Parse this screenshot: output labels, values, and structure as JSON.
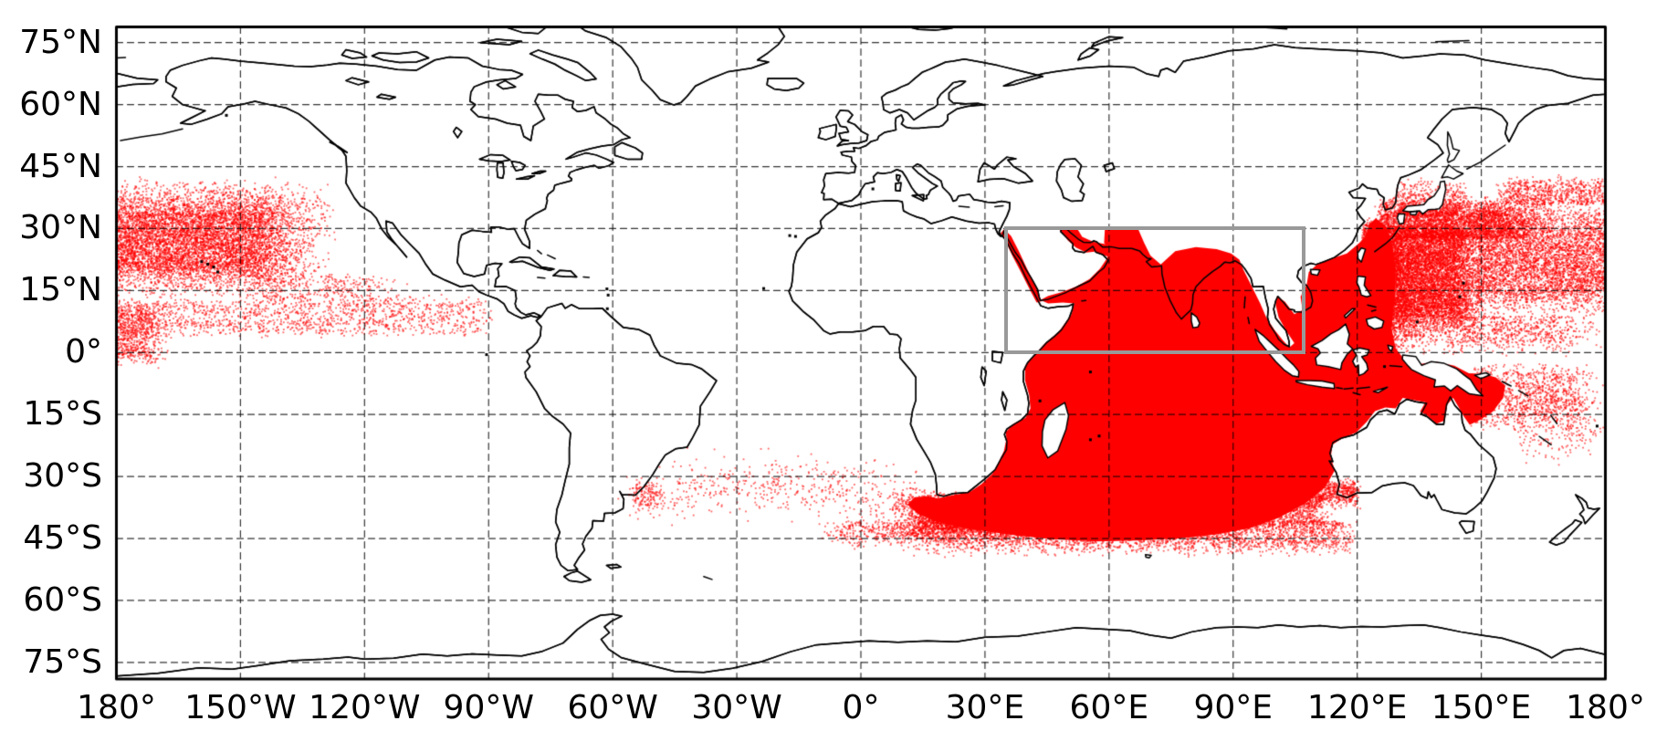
{
  "chart_data": {
    "type": "scatter",
    "title": "",
    "projection": "equirectangular",
    "axis_ranges": {
      "lon": [
        -180,
        180
      ],
      "lat": [
        -79.0,
        78.8
      ]
    },
    "x_axis": {
      "ticks": [
        {
          "lon": -180,
          "label": "180°"
        },
        {
          "lon": -150,
          "label": "150°W"
        },
        {
          "lon": -120,
          "label": "120°W"
        },
        {
          "lon": -90,
          "label": "90°W"
        },
        {
          "lon": -60,
          "label": "60°W"
        },
        {
          "lon": -30,
          "label": "30°W"
        },
        {
          "lon": 0,
          "label": "0°"
        },
        {
          "lon": 30,
          "label": "30°E"
        },
        {
          "lon": 60,
          "label": "60°E"
        },
        {
          "lon": 90,
          "label": "90°E"
        },
        {
          "lon": 120,
          "label": "120°E"
        },
        {
          "lon": 150,
          "label": "150°E"
        },
        {
          "lon": 180,
          "label": "180°"
        }
      ]
    },
    "y_axis": {
      "ticks": [
        {
          "lat": 75,
          "label": "75°N"
        },
        {
          "lat": 60,
          "label": "60°N"
        },
        {
          "lat": 45,
          "label": "45°N"
        },
        {
          "lat": 30,
          "label": "30°N"
        },
        {
          "lat": 15,
          "label": "15°N"
        },
        {
          "lat": 0,
          "label": "0°"
        },
        {
          "lat": -15,
          "label": "15°S"
        },
        {
          "lat": -30,
          "label": "30°S"
        },
        {
          "lat": -45,
          "label": "45°S"
        },
        {
          "lat": -60,
          "label": "60°S"
        },
        {
          "lat": -75,
          "label": "75°S"
        }
      ]
    },
    "grid": {
      "on": true,
      "lon_step": 30,
      "lat_step": 15,
      "color": "rgba(0,0,0,0.8)",
      "dash": [
        7,
        5
      ],
      "linewidth": 1.2
    },
    "frame": {
      "color": "#000000",
      "linewidth": 3
    },
    "coastline": {
      "color": "#000000",
      "linewidth": 1.5
    },
    "study_region_box": {
      "lon": [
        35,
        107
      ],
      "lat": [
        0,
        30
      ],
      "color": "#999999",
      "linewidth": 4
    },
    "scatter": {
      "color": "#ff0000",
      "dot_size": 1.8,
      "dot_alpha": 0.6,
      "seed": 42,
      "solid_regions": [
        {
          "name": "indian-ocean-dense-blob",
          "polygon": [
            59,
            30,
            67,
            30,
            68.5,
            26.5,
            70,
            23.5,
            72.5,
            21.3,
            76,
            24.5,
            81,
            25.5,
            86,
            25,
            89.5,
            24,
            91.5,
            22.5,
            92.5,
            20,
            94.5,
            16,
            96.5,
            12,
            98,
            8.5,
            100,
            5.5,
            102,
            3,
            103.6,
            1.2,
            104.8,
            2.3,
            103,
            5,
            101,
            8.5,
            100.3,
            11.5,
            100.6,
            13.6,
            102.5,
            12.3,
            104.8,
            9.3,
            106.8,
            10.3,
            106.3,
            13.5,
            107.8,
            16.5,
            108.3,
            19.5,
            110.5,
            21.5,
            114,
            22.8,
            117.5,
            24,
            120.5,
            26.5,
            122.3,
            28.5,
            122.8,
            31,
            124.5,
            32.5,
            127,
            30.5,
            128.5,
            26,
            129.3,
            20,
            129,
            13,
            128.3,
            6,
            129.3,
            1,
            131.5,
            -1.8,
            135,
            -2.8,
            139,
            -2.2,
            143.5,
            -3.2,
            147,
            -5,
            150.5,
            -5.2,
            153.5,
            -6,
            155.8,
            -8,
            155.3,
            -11,
            152.8,
            -14.3,
            149.8,
            -16.2,
            147.2,
            -17.5,
            145.8,
            -15.5,
            144.5,
            -13.2,
            143.2,
            -11,
            141.8,
            -12.5,
            141,
            -16.5,
            139.2,
            -17.2,
            136.8,
            -15.2,
            135.2,
            -14.3,
            136.5,
            -12,
            133.5,
            -11.5,
            131,
            -11,
            129.3,
            -13.5,
            126.8,
            -13.3,
            124.3,
            -14.2,
            122.3,
            -16.8,
            119.8,
            -19.3,
            116.3,
            -20.8,
            114,
            -22.3,
            113.6,
            -25.5,
            114.6,
            -28.5,
            112.3,
            -32.5,
            107.5,
            -36.5,
            101,
            -40,
            94,
            -42.5,
            86,
            -44,
            77,
            -45,
            67,
            -45.5,
            57,
            -45.7,
            47,
            -45.2,
            38,
            -44.3,
            30,
            -43.2,
            24,
            -42.3,
            18.5,
            -41,
            13.8,
            -39,
            11.3,
            -36.8,
            13,
            -35,
            16.3,
            -34.8,
            18.7,
            -35.3,
            21,
            -34.8,
            24,
            -34.2,
            26.5,
            -33.6,
            29.2,
            -31.8,
            31.8,
            -29.3,
            33.2,
            -26.8,
            34.6,
            -23.8,
            35.2,
            -20.8,
            35,
            -19.3,
            36.8,
            -17.3,
            39.8,
            -15.8,
            41,
            -13.5,
            40.7,
            -10.3,
            39.7,
            -6.8,
            39.7,
            -3.2,
            41.8,
            -0.8,
            44.3,
            2,
            47.8,
            5,
            50.9,
            9.2,
            51.6,
            11.9,
            48.8,
            12.1,
            45.3,
            11.9,
            43.4,
            12.7,
            45.3,
            13.7,
            48.5,
            14.6,
            52.3,
            16.1,
            55.3,
            17.8,
            57.8,
            20.3,
            59.3,
            22.5,
            60.5,
            24.8,
            58.8,
            26.5
          ]
        },
        {
          "name": "red-sea",
          "polygon": [
            34.6,
            29.8,
            36.3,
            28.2,
            38.3,
            24.3,
            40.3,
            20,
            42.3,
            15.8,
            43.6,
            12.4,
            42.5,
            12.1,
            40.8,
            15.3,
            38.8,
            19.3,
            36.6,
            23.5,
            34.8,
            27.3,
            33.8,
            28.9
          ]
        },
        {
          "name": "persian-gulf-and-gulf-of-oman",
          "polygon": [
            47.8,
            30,
            52.3,
            30,
            53.5,
            28,
            56.2,
            26.8,
            58.8,
            26.3,
            61,
            25.9,
            64,
            25.6,
            66.8,
            25.4,
            66.5,
            24.3,
            63,
            24.8,
            59.8,
            23.2,
            58.3,
            23.7,
            56.5,
            24.4,
            54.5,
            24.2,
            52,
            25.4,
            50,
            27.2,
            48.8,
            28.9
          ]
        }
      ],
      "point_clouds": [
        {
          "name": "northwest-pacific-core",
          "lon": [
            121,
            152
          ],
          "lat": [
            5,
            33
          ],
          "count": 9500,
          "soft": [
            0,
            0.25,
            0.2,
            0.15
          ]
        },
        {
          "name": "kuroshio-extension",
          "lon": [
            124,
            168
          ],
          "lat": [
            27,
            38
          ],
          "count": 3200,
          "soft": [
            0.05,
            0.3,
            0.1,
            0.35
          ]
        },
        {
          "name": "north-pacific-east-extension",
          "lon": [
            148,
            180
          ],
          "lat": [
            8,
            38
          ],
          "count": 4200,
          "soft": [
            0.05,
            0,
            0.25,
            0.3
          ]
        },
        {
          "name": "north-pacific-top-sparse",
          "lon": [
            152,
            180
          ],
          "lat": [
            36,
            43.5
          ],
          "count": 700,
          "soft": [
            0.2,
            0,
            0,
            0.5
          ]
        },
        {
          "name": "pacific-equatorial-south-edge",
          "lon": [
            121,
            180
          ],
          "lat": [
            -1,
            9
          ],
          "count": 1100,
          "soft": [
            0.05,
            0.2,
            0.5,
            0
          ]
        },
        {
          "name": "northeast-pacific-gyre",
          "lon": [
            -180,
            -126
          ],
          "lat": [
            13,
            43
          ],
          "count": 4800,
          "soft": [
            0,
            0.35,
            0.2,
            0.25
          ]
        },
        {
          "name": "northeast-pacific-gyre-core",
          "lon": [
            -180,
            -133
          ],
          "lat": [
            19,
            36
          ],
          "count": 2400,
          "soft": [
            0,
            0.3,
            0.15,
            0.15
          ]
        },
        {
          "name": "itcz-band",
          "lon": [
            -180,
            -88
          ],
          "lat": [
            3.5,
            14.5
          ],
          "count": 1400,
          "soft": [
            0,
            0.05,
            0.2,
            0.25
          ]
        },
        {
          "name": "left-edge-equatorial",
          "lon": [
            -180,
            -167
          ],
          "lat": [
            -4,
            13
          ],
          "count": 650,
          "soft": [
            0,
            0.5,
            0.25,
            0.2
          ]
        },
        {
          "name": "southwest-pacific",
          "lon": [
            146,
            180
          ],
          "lat": [
            -20,
            -2
          ],
          "count": 1000,
          "soft": [
            0.1,
            0.35,
            0.3,
            0.15
          ]
        },
        {
          "name": "southwest-pacific-sparse",
          "lon": [
            158,
            180
          ],
          "lat": [
            -28,
            -8
          ],
          "count": 280,
          "soft": [
            0.1,
            0.2,
            0.4,
            0.2
          ]
        },
        {
          "name": "southern-ocean-fuzz",
          "lon": [
            10,
            121
          ],
          "lat": [
            -49.5,
            -40.5
          ],
          "count": 3200,
          "soft": [
            0.1,
            0.06,
            0.45,
            0
          ]
        },
        {
          "name": "agulhas-retroflection",
          "lon": [
            7,
            42
          ],
          "lat": [
            -46,
            -33
          ],
          "count": 2600,
          "soft": [
            0.25,
            0.2,
            0.3,
            0.25
          ]
        },
        {
          "name": "philippine-sea-blend",
          "lon": [
            123,
            136
          ],
          "lat": [
            0,
            31
          ],
          "count": 1300,
          "soft": [
            0,
            0.5,
            0.2,
            0.2
          ]
        },
        {
          "name": "japan-coastal-sparse",
          "lon": [
            128,
            150
          ],
          "lat": [
            33,
            43
          ],
          "count": 550,
          "soft": [
            0.1,
            0.3,
            0,
            0.5
          ]
        },
        {
          "name": "east-pacific-mid-sparse",
          "lon": [
            -152,
            -108
          ],
          "lat": [
            11,
            20
          ],
          "count": 300,
          "soft": [
            0.2,
            0.3,
            0.3,
            0.3
          ]
        },
        {
          "name": "southeast-indian-fade",
          "lon": [
            100,
            121
          ],
          "lat": [
            -38,
            -30
          ],
          "count": 700,
          "soft": [
            0.3,
            0.1,
            0.4,
            0.3
          ]
        },
        {
          "name": "south-indian-blend",
          "lon": [
            90,
            114
          ],
          "lat": [
            -43,
            -33
          ],
          "count": 900,
          "soft": [
            0.2,
            0.2,
            0.3,
            0.2
          ]
        },
        {
          "name": "uruguay-coastal",
          "lon": [
            -57,
            -47
          ],
          "lat": [
            -39,
            -31
          ],
          "count": 130,
          "soft": [
            0.3,
            0.3,
            0.3,
            0.3
          ]
        },
        {
          "name": "south-atlantic-under-arc",
          "lon": [
            -12,
            20
          ],
          "lat": [
            -48,
            -40
          ],
          "count": 380,
          "soft": [
            0.3,
            0.2,
            0.5,
            0.2
          ]
        }
      ],
      "arc_clouds": [
        {
          "name": "south-atlantic-arc",
          "p0": [
            17,
            -38.5
          ],
          "p1": [
            -18,
            -26.5
          ],
          "p2": [
            -54,
            -35.5
          ],
          "count": 620,
          "sigma": 3.2,
          "bias": 1.3
        }
      ]
    }
  }
}
